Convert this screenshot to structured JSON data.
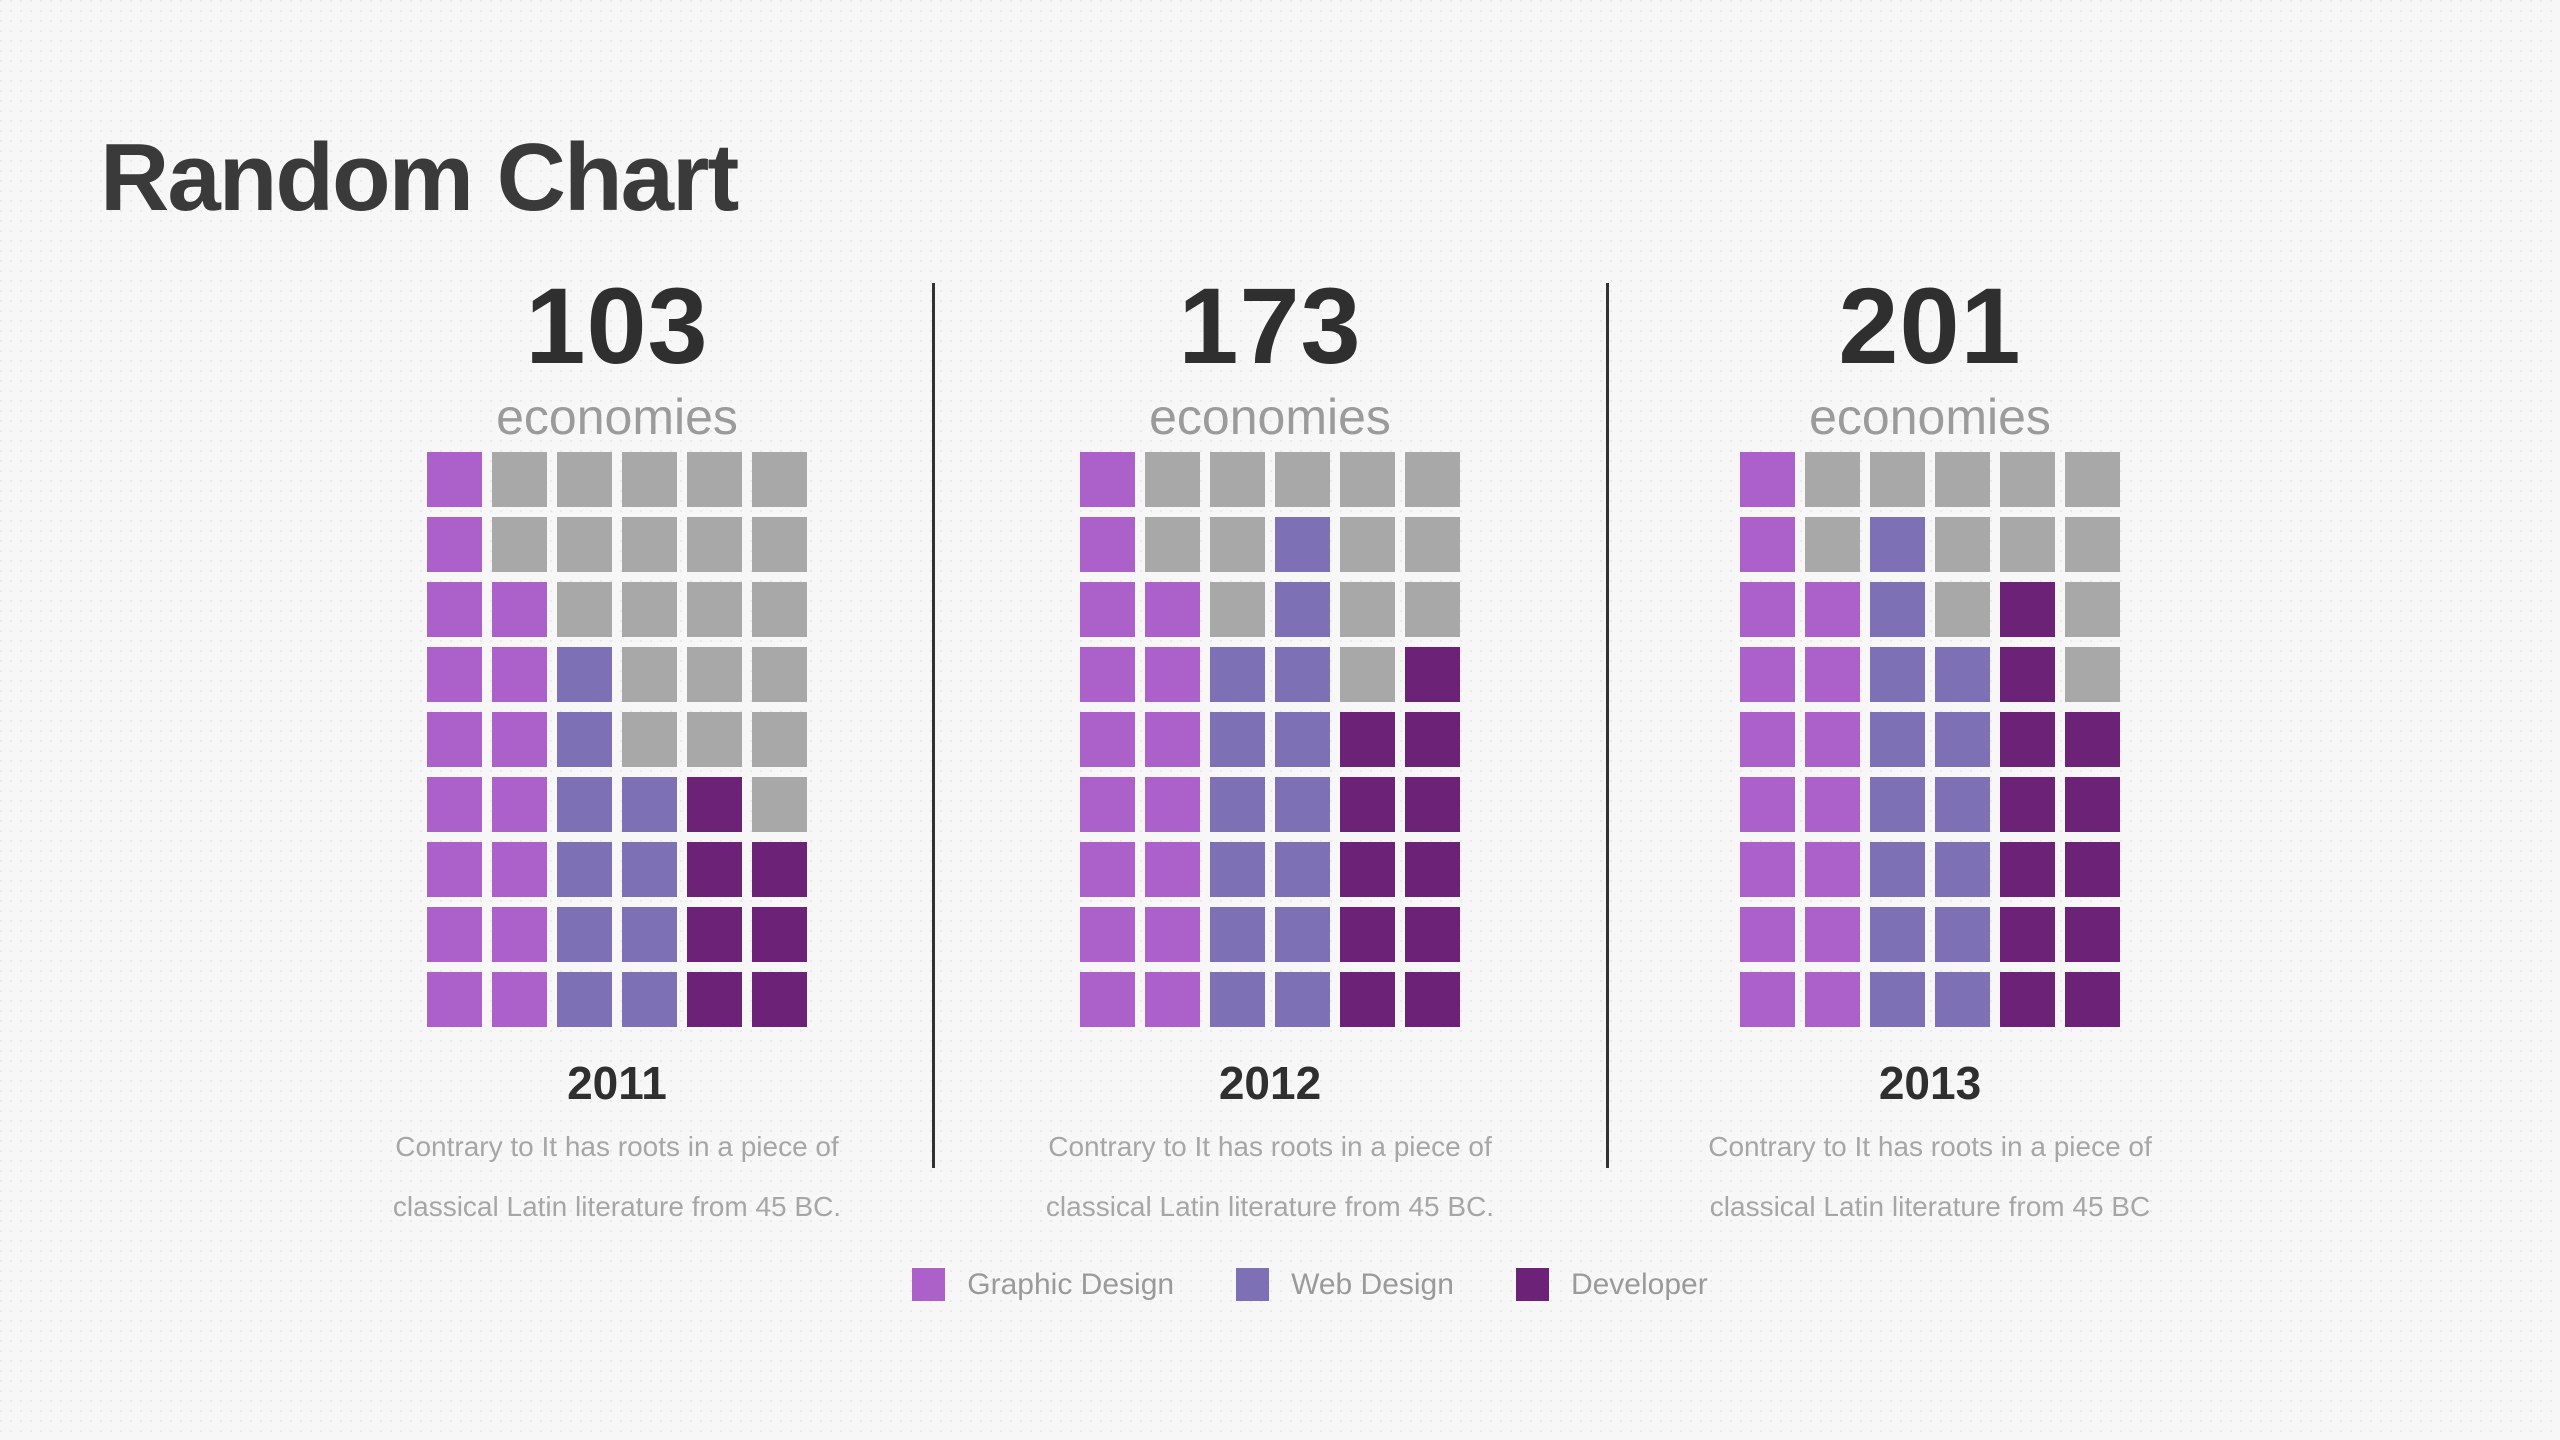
{
  "title": "Random Chart",
  "chart_data": {
    "type": "heatmap",
    "subtype": "waffle-pictograph",
    "title": "Random Chart",
    "grid": {
      "rows": 9,
      "cols": 6
    },
    "cell_codes": {
      "P": "Graphic Design",
      "W": "Web Design",
      "D": "Developer",
      "G": "empty"
    },
    "legend_position": "bottom-center",
    "legend": [
      {
        "label": "Graphic Design",
        "color_key": "graphic",
        "color": "#AC60C9"
      },
      {
        "label": "Web Design",
        "color_key": "web",
        "color": "#7E70B5"
      },
      {
        "label": "Developer",
        "color_key": "dev",
        "color": "#6B2277"
      }
    ],
    "colors": {
      "graphic": "#AC60C9",
      "web": "#7E70B5",
      "dev": "#6B2277",
      "empty": "#A9A8A8",
      "number": "#2F2F2F",
      "muted": "#9C9B9B",
      "caption": "#A7A6A6",
      "legendtext": "#9B9A9A",
      "title": "#3A3A3A",
      "divider": "#333333",
      "background": "#F8F7F7"
    },
    "panels": [
      {
        "value": "103",
        "unit": "economies",
        "year": "2011",
        "caption_line1": "Contrary to It has roots in a piece of",
        "caption_line2": "classical Latin literature from 45 BC.",
        "counts": {
          "graphic_design": 16,
          "web_design": 10,
          "developer": 7
        },
        "rows": [
          "PGGGGG",
          "PGGGGG",
          "PPGGGG",
          "PPWGGG",
          "PPWGGG",
          "PPWWDG",
          "PPWWDD",
          "PPWWDD",
          "PPWWDD"
        ]
      },
      {
        "value": "173",
        "unit": "economies",
        "year": "2012",
        "caption_line1": "Contrary to It has roots in a piece of",
        "caption_line2": "classical Latin literature from 45 BC.",
        "counts": {
          "graphic_design": 16,
          "web_design": 14,
          "developer": 11
        },
        "rows": [
          "PGGGGG",
          "PGGWGG",
          "PPGWGG",
          "PPWWGD",
          "PPWWDD",
          "PPWWDD",
          "PPWWDD",
          "PPWWDD",
          "PPWWDD"
        ]
      },
      {
        "value": "201",
        "unit": "economies",
        "year": "2013",
        "caption_line1": "Contrary to It has roots in a piece of",
        "caption_line2": "classical Latin literature from 45 BC",
        "counts": {
          "graphic_design": 16,
          "web_design": 14,
          "developer": 12
        },
        "rows": [
          "PGGGGG",
          "PGWGGG",
          "PPWGDG",
          "PPWWDG",
          "PPWWDD",
          "PPWWDD",
          "PPWWDD",
          "PPWWDD",
          "PPWWDD"
        ]
      }
    ]
  }
}
